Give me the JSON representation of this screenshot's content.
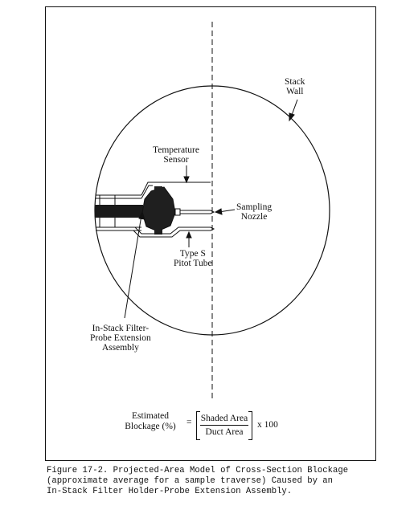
{
  "labels": {
    "stack_wall": [
      "Stack",
      "Wall"
    ],
    "temperature_sensor": [
      "Temperature",
      "Sensor"
    ],
    "sampling_nozzle": [
      "Sampling",
      "Nozzle"
    ],
    "pitot_tube": [
      "Type S",
      "Pitot Tube"
    ],
    "filter_assembly": [
      "In-Stack Filter-",
      "Probe Extension",
      "Assembly"
    ]
  },
  "formula": {
    "left_line1": "Estimated",
    "left_line2": "Blockage (%)",
    "equals": "=",
    "numerator": "Shaded Area",
    "denominator": "Duct Area",
    "multiplier": "x 100"
  },
  "caption": [
    "Figure 17-2.  Projected-Area Model of Cross-Section Blockage",
    "(approximate average for a sample traverse) Caused by an",
    "In-Stack Filter Holder-Probe Extension Assembly."
  ]
}
